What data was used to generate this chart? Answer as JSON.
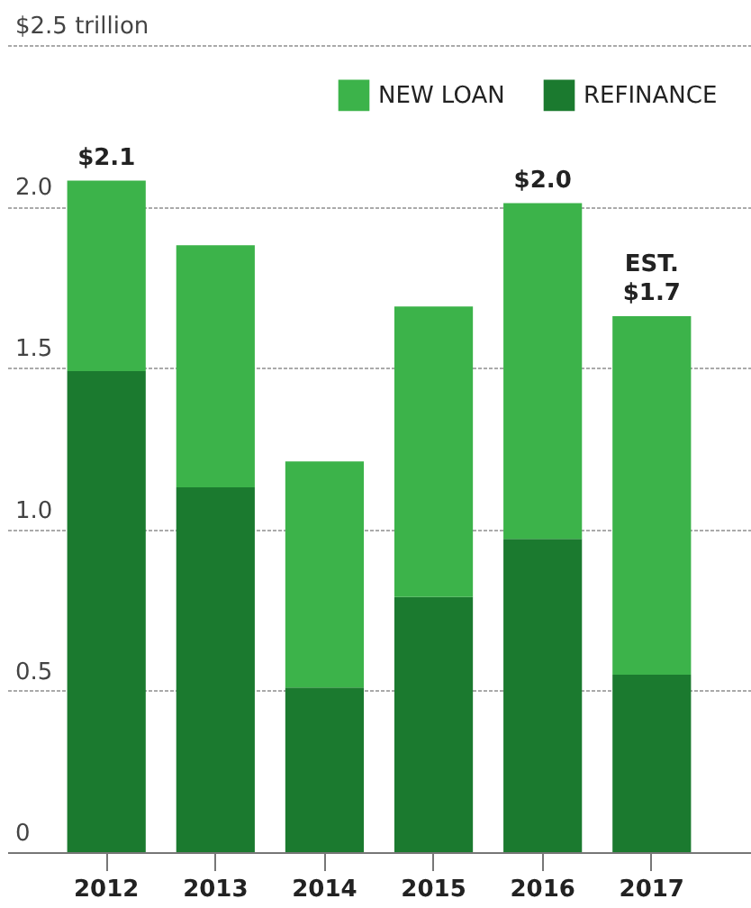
{
  "chart_data": {
    "type": "bar",
    "stacked": true,
    "categories": [
      "2012",
      "2013",
      "2014",
      "2015",
      "2016",
      "2017"
    ],
    "series": [
      {
        "name": "REFINANCE",
        "color": "#1b7a2f",
        "values": [
          1.49,
          1.13,
          0.51,
          0.79,
          0.97,
          0.55
        ]
      },
      {
        "name": "NEW LOAN",
        "color": "#3cb34a",
        "values": [
          0.59,
          0.75,
          0.7,
          0.9,
          1.04,
          1.11
        ]
      }
    ],
    "totals": [
      "$2.1",
      null,
      null,
      null,
      "$2.0",
      "EST.\n$1.7"
    ],
    "ylim": [
      0,
      2.5
    ],
    "yticks": [
      0,
      0.5,
      {
        "value": 1,
        "label": "1.0"
      },
      1.5,
      {
        "value": 2,
        "label": "2.0"
      },
      {
        "value": 2.5,
        "label": "$2.5 trillion"
      }
    ],
    "grid": "y",
    "legend": "top right"
  }
}
